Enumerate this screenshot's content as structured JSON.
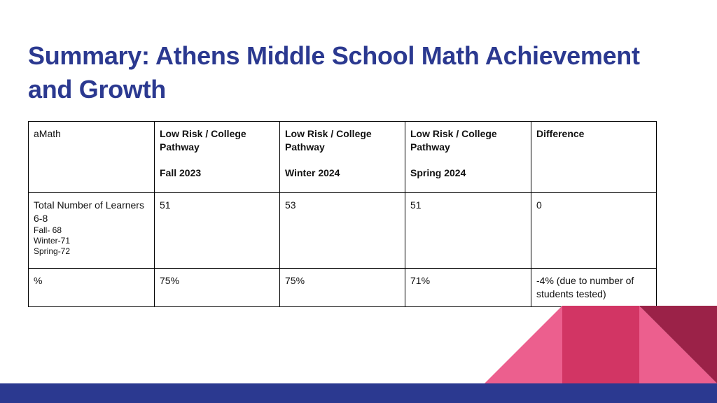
{
  "slide": {
    "title": "Summary:  Athens Middle School Math Achievement and Growth"
  },
  "table": {
    "header": {
      "col1": "aMath",
      "col2_line1": "Low Risk / College Pathway",
      "col2_line2": "Fall 2023",
      "col3_line1": "Low Risk / College Pathway",
      "col3_line2": "Winter 2024",
      "col4_line1": "Low Risk / College Pathway",
      "col4_line2": "Spring 2024",
      "col5": "Difference"
    },
    "rows": [
      {
        "label": "Total Number of Learners 6-8",
        "sub": [
          "Fall-  68",
          "Winter-71",
          "Spring-72"
        ],
        "fall": "51",
        "winter": "53",
        "spring": "51",
        "difference": "0"
      },
      {
        "label": "%",
        "fall": "75%",
        "winter": "75%",
        "spring": "71%",
        "difference": "-4% (due to number of students tested)"
      }
    ]
  },
  "colors": {
    "title": "#2b3990",
    "bottom_bar": "#2b3990",
    "pink_light": "#ec5f8e",
    "pink_mid": "#d23564",
    "maroon": "#9b2248"
  }
}
